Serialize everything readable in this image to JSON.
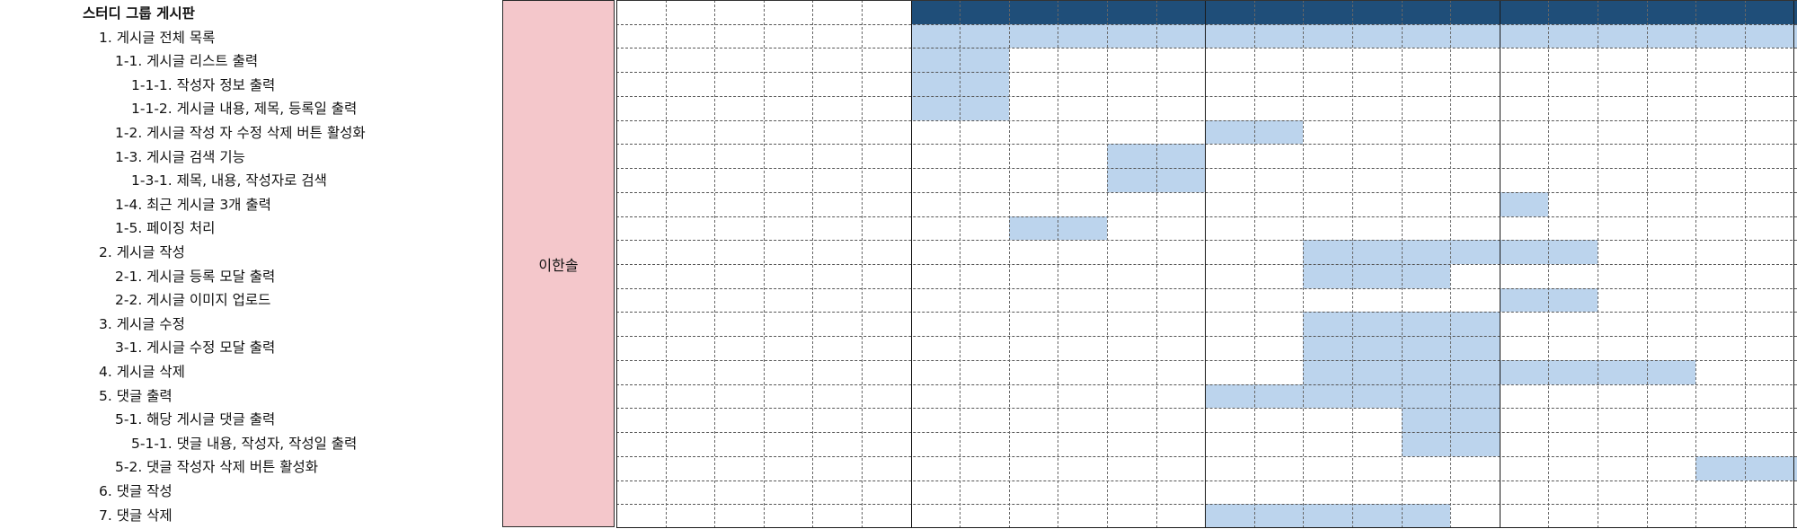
{
  "sheet": {
    "tasks": [
      {
        "label": "스터디 그룹 게시판",
        "level": 0
      },
      {
        "label": "1. 게시글 전체 목록",
        "level": 1
      },
      {
        "label": "1-1. 게시글 리스트 출력",
        "level": 2
      },
      {
        "label": "1-1-1. 작성자 정보 출력",
        "level": 3
      },
      {
        "label": "1-1-2. 게시글 내용, 제목, 등록일 출력",
        "level": 3
      },
      {
        "label": "1-2. 게시글 작성 자 수정 삭제 버튼 활성화",
        "level": 2
      },
      {
        "label": "1-3. 게시글 검색 기능",
        "level": 2
      },
      {
        "label": "1-3-1. 제목, 내용, 작성자로 검색",
        "level": 3
      },
      {
        "label": "1-4. 최근 게시글 3개 출력",
        "level": 2
      },
      {
        "label": "1-5. 페이징 처리",
        "level": 2
      },
      {
        "label": "2. 게시글 작성",
        "level": 1
      },
      {
        "label": "2-1. 게시글 등록 모달 출력",
        "level": 2
      },
      {
        "label": "2-2. 게시글 이미지 업로드",
        "level": 2
      },
      {
        "label": "3. 게시글 수정",
        "level": 1
      },
      {
        "label": "3-1. 게시글 수정 모달 출력",
        "level": 2
      },
      {
        "label": "4. 게시글 삭제",
        "level": 1
      },
      {
        "label": "5. 댓글 출력",
        "level": 1
      },
      {
        "label": "5-1. 해당 게시글 댓글 출력",
        "level": 2
      },
      {
        "label": "5-1-1. 댓글 내용, 작성자, 작성일 출력",
        "level": 3
      },
      {
        "label": "5-2. 댓글 작성자 삭제 버튼 활성화",
        "level": 2
      },
      {
        "label": "6. 댓글 작성",
        "level": 1
      },
      {
        "label": "7. 댓글 삭제",
        "level": 1
      }
    ],
    "assignee": "이한솔",
    "colors": {
      "header": "#1f4e79",
      "scheduled": "#bcd4ed",
      "assignee_bg": "#f4c7cb"
    },
    "schedule": {
      "total_days": 25,
      "header_days": [
        6,
        24
      ],
      "week_starts": [
        0,
        6,
        12,
        18,
        24
      ],
      "bars": [
        {
          "task": 0,
          "start": 6,
          "end": 24
        },
        {
          "task": 1,
          "start": 6,
          "end": 7
        },
        {
          "task": 2,
          "start": 6,
          "end": 7
        },
        {
          "task": 3,
          "start": 6,
          "end": 7
        },
        {
          "task": 4,
          "start": 12,
          "end": 13
        },
        {
          "task": 5,
          "start": 10,
          "end": 11
        },
        {
          "task": 6,
          "start": 10,
          "end": 11
        },
        {
          "task": 7,
          "start": 18,
          "end": 18
        },
        {
          "task": 8,
          "start": 8,
          "end": 9
        },
        {
          "task": 9,
          "start": 14,
          "end": 19
        },
        {
          "task": 10,
          "start": 14,
          "end": 16
        },
        {
          "task": 11,
          "start": 18,
          "end": 19
        },
        {
          "task": 12,
          "start": 14,
          "end": 17
        },
        {
          "task": 13,
          "start": 14,
          "end": 17
        },
        {
          "task": 14,
          "start": 14,
          "end": 21
        },
        {
          "task": 15,
          "start": 12,
          "end": 17
        },
        {
          "task": 16,
          "start": 16,
          "end": 17
        },
        {
          "task": 17,
          "start": 16,
          "end": 17
        },
        {
          "task": 18,
          "start": 22,
          "end": 24
        },
        {
          "task": 20,
          "start": 12,
          "end": 16
        },
        {
          "task": 21,
          "start": 12,
          "end": 13
        }
      ]
    }
  }
}
